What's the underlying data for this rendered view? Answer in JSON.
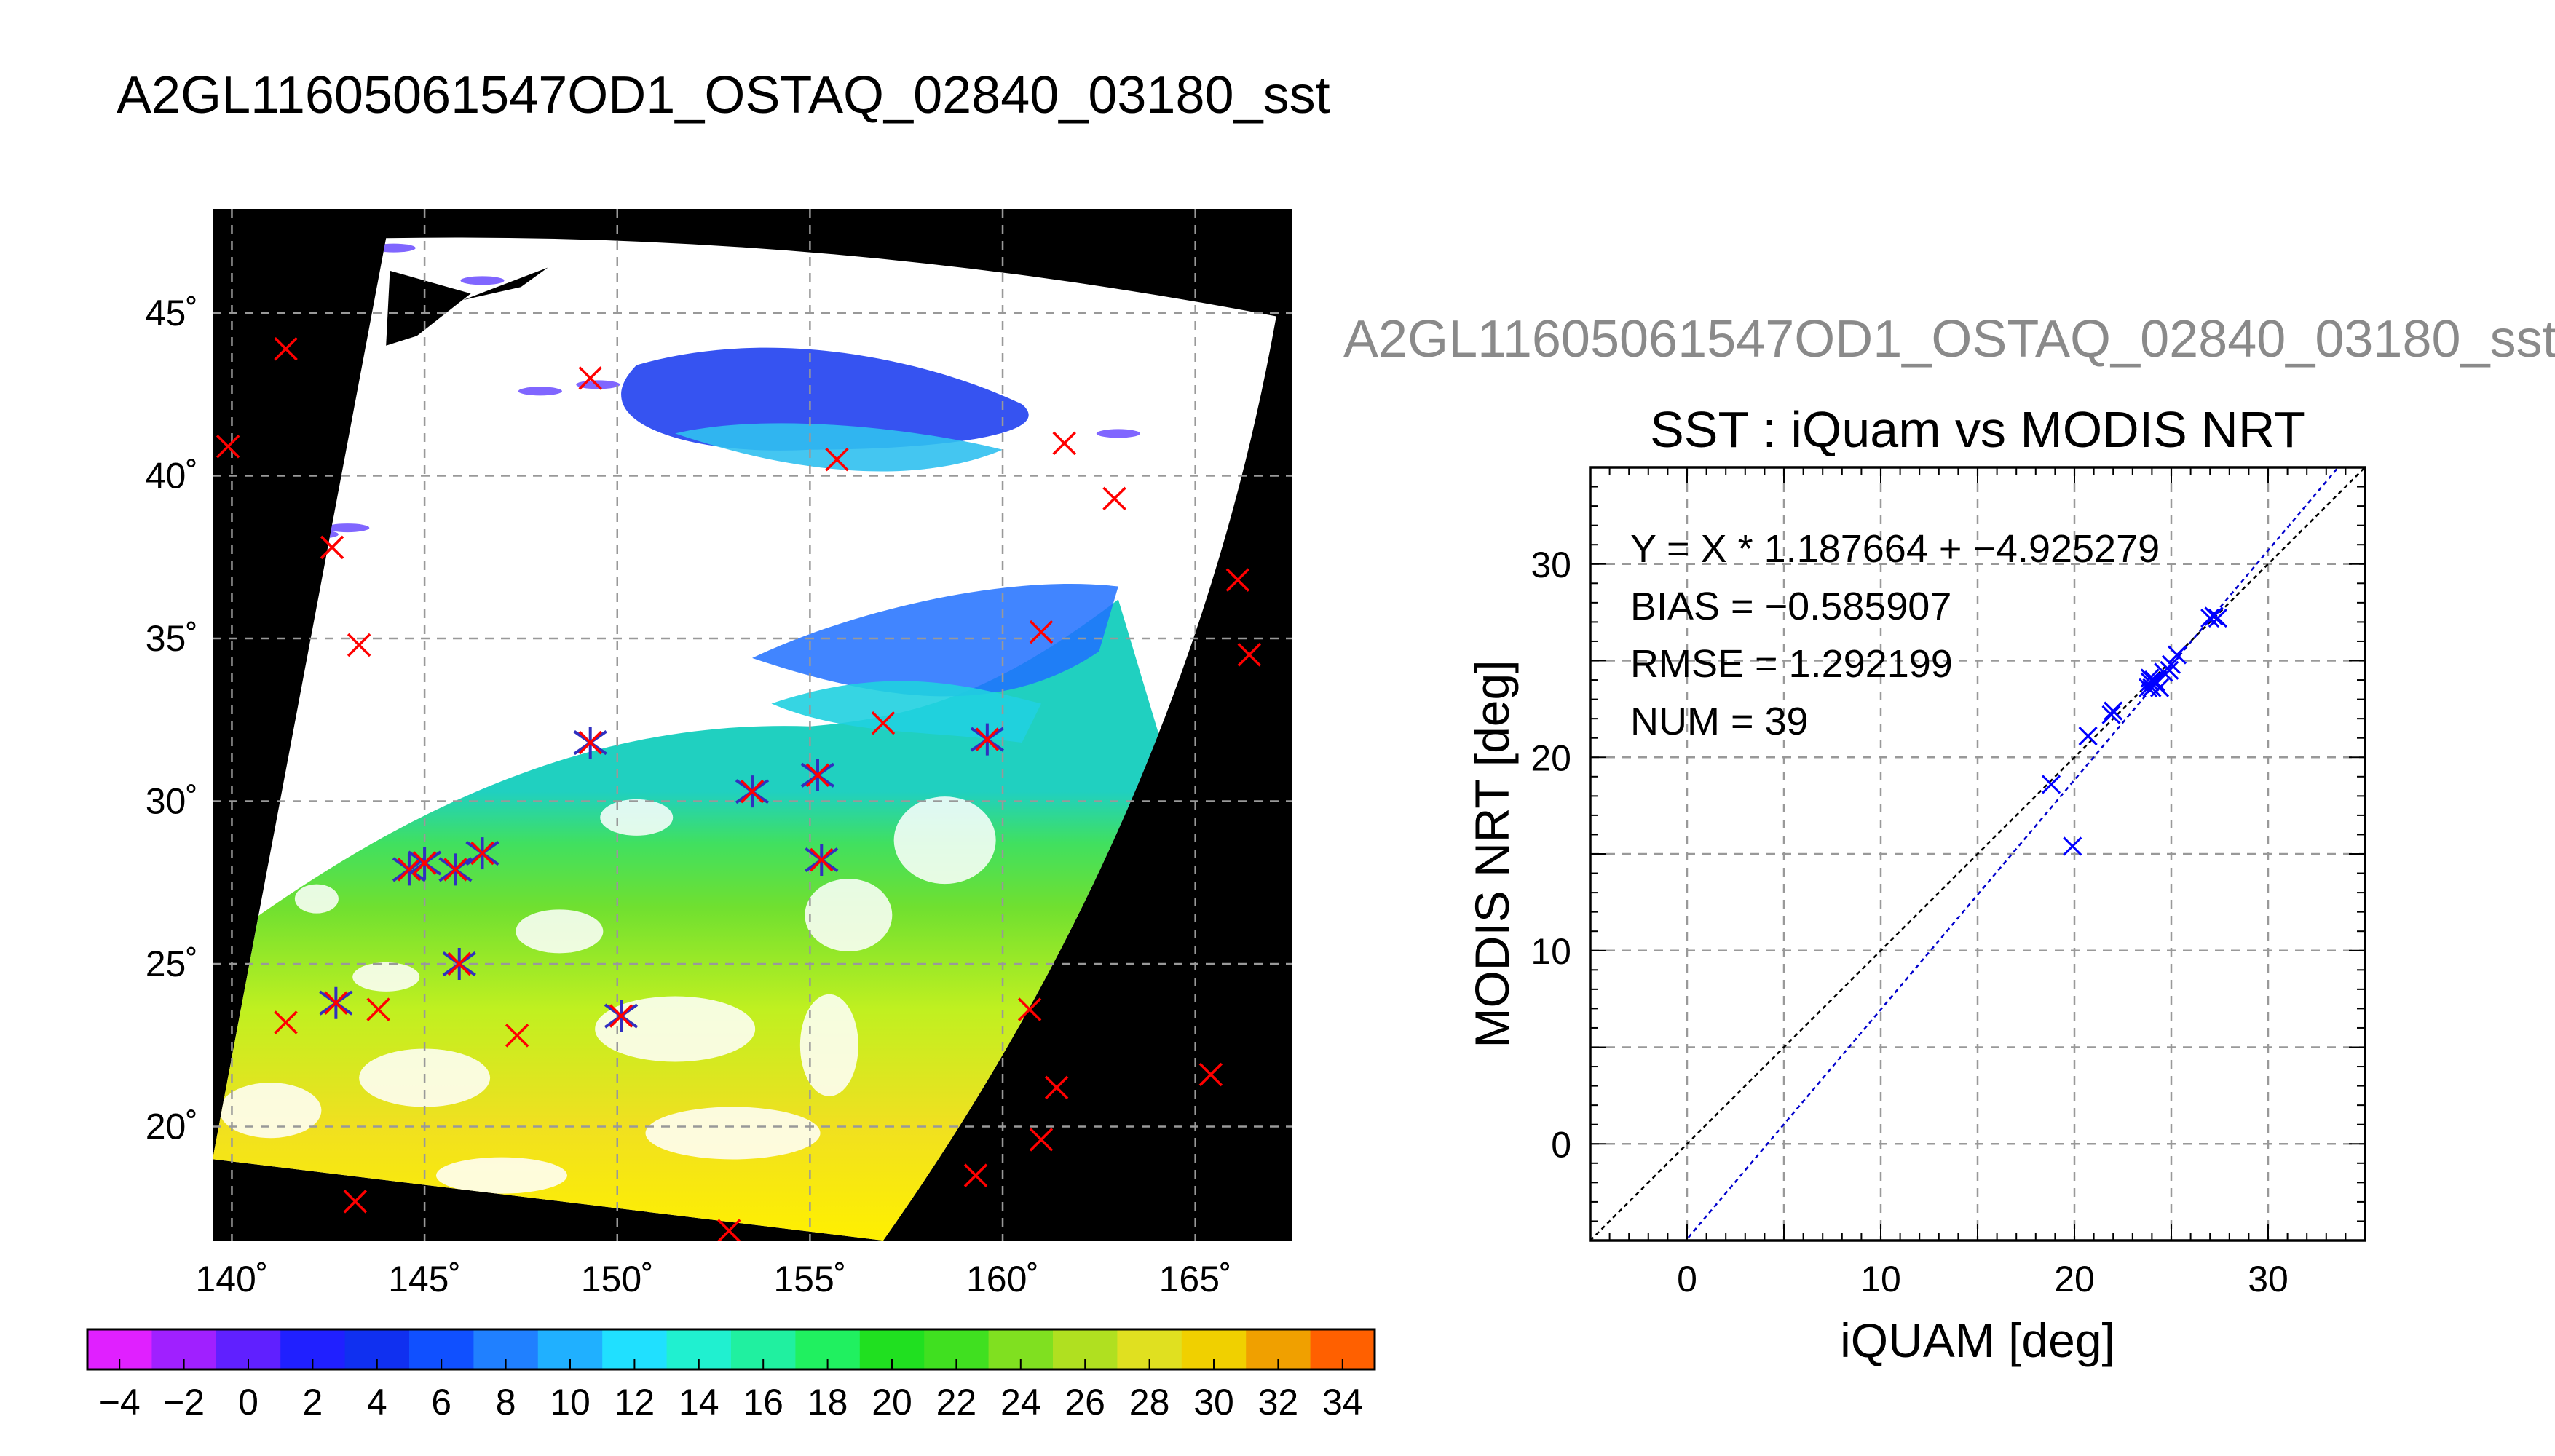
{
  "titles": {
    "main": "A2GL11605061547OD1_OSTAQ_02840_03180_sst",
    "side": "A2GL11605061547OD1_OSTAQ_02840_03180_sst"
  },
  "colors": {
    "background": "#ffffff",
    "no_data": "#000000",
    "iquam_marker": "#ff0000",
    "matchup_marker": "#3030c0",
    "scatter_marker": "#0000ff",
    "fit_line": "#0000cc",
    "identity_line": "#000000",
    "grid": "#999999"
  },
  "chart_data": [
    {
      "type": "heatmap",
      "subtype": "map",
      "title": "",
      "longitude_ticks": [
        140,
        145,
        150,
        155,
        160,
        165
      ],
      "longitude_tick_labels": [
        "140˚",
        "145˚",
        "150˚",
        "155˚",
        "160˚",
        "165˚"
      ],
      "latitude_ticks": [
        20,
        25,
        30,
        35,
        40,
        45
      ],
      "latitude_tick_labels": [
        "20˚",
        "25˚",
        "30˚",
        "35˚",
        "40˚",
        "45˚"
      ],
      "xlim": [
        139.5,
        167.5
      ],
      "ylim": [
        16.5,
        48.2
      ],
      "grid": true,
      "swath_corners": [
        {
          "lon": 144.0,
          "lat": 47.3
        },
        {
          "lon": 167.1,
          "lat": 44.9
        },
        {
          "lon": 156.9,
          "lat": 16.5
        },
        {
          "lon": 139.5,
          "lat": 19.0
        }
      ],
      "sst_regions": [
        {
          "band": "warm_south",
          "lat_range": [
            16.5,
            24.0
          ],
          "sst": 28
        },
        {
          "band": "subtropical",
          "lat_range": [
            24.0,
            27.0
          ],
          "sst": 25
        },
        {
          "band": "mid",
          "lat_range": [
            27.0,
            32.0
          ],
          "sst": 21
        },
        {
          "band": "transition",
          "lat_range": [
            32.0,
            35.0
          ],
          "sst": 15
        },
        {
          "band": "cold_north",
          "lat_range": [
            39.0,
            44.0
          ],
          "sst": 5
        }
      ],
      "iquam_points": [
        {
          "lon": 141.4,
          "lat": 43.9
        },
        {
          "lon": 139.9,
          "lat": 40.9
        },
        {
          "lon": 149.3,
          "lat": 43.0
        },
        {
          "lon": 155.7,
          "lat": 40.5
        },
        {
          "lon": 161.6,
          "lat": 41.0
        },
        {
          "lon": 162.9,
          "lat": 39.3
        },
        {
          "lon": 142.6,
          "lat": 37.8
        },
        {
          "lon": 143.3,
          "lat": 34.8
        },
        {
          "lon": 166.1,
          "lat": 36.8
        },
        {
          "lon": 166.4,
          "lat": 34.5
        },
        {
          "lon": 161.0,
          "lat": 35.2
        },
        {
          "lon": 156.9,
          "lat": 32.4
        },
        {
          "lon": 141.4,
          "lat": 23.2
        },
        {
          "lon": 143.8,
          "lat": 23.6
        },
        {
          "lon": 147.4,
          "lat": 22.8
        },
        {
          "lon": 160.7,
          "lat": 23.6
        },
        {
          "lon": 161.4,
          "lat": 21.2
        },
        {
          "lon": 165.4,
          "lat": 21.6
        },
        {
          "lon": 161.0,
          "lat": 19.6
        },
        {
          "lon": 159.3,
          "lat": 18.5
        },
        {
          "lon": 143.2,
          "lat": 17.7
        },
        {
          "lon": 152.9,
          "lat": 16.8
        }
      ],
      "matchup_points": [
        {
          "lon": 149.3,
          "lat": 31.8
        },
        {
          "lon": 153.5,
          "lat": 30.3
        },
        {
          "lon": 155.2,
          "lat": 30.8
        },
        {
          "lon": 159.6,
          "lat": 31.9
        },
        {
          "lon": 144.6,
          "lat": 27.9
        },
        {
          "lon": 145.0,
          "lat": 28.1
        },
        {
          "lon": 145.8,
          "lat": 27.9
        },
        {
          "lon": 146.5,
          "lat": 28.4
        },
        {
          "lon": 155.3,
          "lat": 28.2
        },
        {
          "lon": 145.9,
          "lat": 25.0
        },
        {
          "lon": 142.7,
          "lat": 23.8
        },
        {
          "lon": 150.1,
          "lat": 23.4
        }
      ],
      "colorbar": {
        "min": -5,
        "max": 35,
        "tick_labels": [
          "−4",
          "−2",
          "0",
          "2",
          "4",
          "6",
          "8",
          "10",
          "12",
          "14",
          "16",
          "18",
          "20",
          "22",
          "24",
          "26",
          "28",
          "30",
          "32",
          "34"
        ],
        "tick_values": [
          -4,
          -2,
          0,
          2,
          4,
          6,
          8,
          10,
          12,
          14,
          16,
          18,
          20,
          22,
          24,
          26,
          28,
          30,
          32,
          34
        ]
      }
    },
    {
      "type": "scatter",
      "title": "SST : iQuam vs MODIS NRT",
      "xlabel": "iQUAM [deg]",
      "ylabel": "MODIS NRT [deg]",
      "xlim": [
        -5,
        35
      ],
      "ylim": [
        -5,
        35
      ],
      "xticks": [
        0,
        10,
        20,
        30
      ],
      "xtick_labels": [
        "0",
        "10",
        "20",
        "30"
      ],
      "yticks": [
        0,
        10,
        20,
        30
      ],
      "ytick_labels": [
        "0",
        "10",
        "20",
        "30"
      ],
      "grid": true,
      "annotations": [
        "Y = X * 1.187664 + −4.925279",
        "BIAS = −0.585907",
        "RMSE = 1.292199",
        "NUM = 39"
      ],
      "fit": {
        "slope": 1.187664,
        "intercept": -4.925279
      },
      "identity_line": true,
      "x": [
        18.8,
        19.9,
        20.7,
        21.9,
        22.0,
        23.9,
        24.0,
        24.2,
        23.8,
        24.4,
        24.9,
        25.0,
        25.3,
        27.0,
        27.4,
        24.1,
        23.9,
        24.6,
        24.2,
        27.2
      ],
      "y": [
        18.6,
        15.4,
        21.1,
        22.2,
        22.4,
        23.9,
        23.6,
        23.8,
        23.6,
        23.6,
        24.5,
        24.8,
        25.3,
        27.2,
        27.2,
        24.0,
        24.1,
        24.4,
        23.9,
        27.3
      ]
    }
  ]
}
